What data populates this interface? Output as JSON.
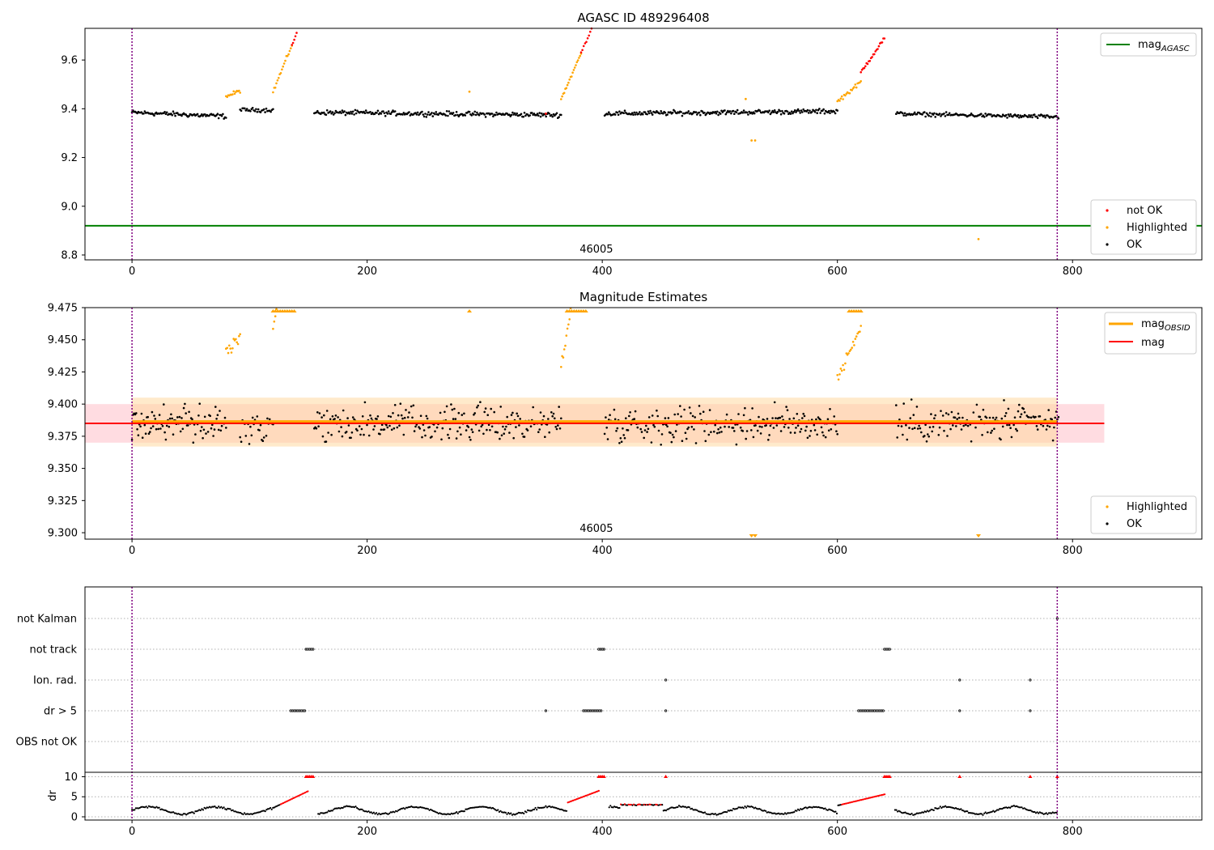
{
  "chart_data": [
    {
      "type": "scatter",
      "title": "AGASC ID 489296408",
      "xlim": [
        -40,
        910
      ],
      "ylim": [
        8.78,
        9.73
      ],
      "xticks": [
        0,
        200,
        400,
        600,
        800
      ],
      "yticks": [
        8.8,
        9.0,
        9.2,
        9.4,
        9.6
      ],
      "ytick_labels": [
        "8.8",
        "9.0",
        "9.2",
        "9.4",
        "9.6"
      ],
      "annotation": "46005",
      "annotation_x": 395,
      "vlines": [
        0,
        787
      ],
      "hline": {
        "name": "mag_AGASC",
        "label_main": "mag",
        "label_sub": "AGASC",
        "y": 8.92,
        "color": "#008000"
      },
      "legend_line": {
        "label_main": "mag",
        "label_sub": "AGASC",
        "color": "#008000"
      },
      "legend_markers": [
        {
          "label": "not OK",
          "color": "#ff0000"
        },
        {
          "label": "Highlighted",
          "color": "#ffa500"
        },
        {
          "label": "OK",
          "color": "#000000"
        }
      ],
      "segments": [
        {
          "x0": 0,
          "x1": 80,
          "base": 9.385,
          "slope": -0.0002,
          "noise": 0.012,
          "status": "ok",
          "n": 90
        },
        {
          "x0": 80,
          "x1": 92,
          "base": 9.45,
          "slope": 0.002,
          "noise": 0.01,
          "status": "highlighted",
          "n": 14
        },
        {
          "x0": 92,
          "x1": 120,
          "base": 9.395,
          "slope": 0.0,
          "noise": 0.01,
          "status": "ok",
          "n": 30
        },
        {
          "x0": 120,
          "x1": 136,
          "base": 9.47,
          "slope": 0.012,
          "noise": 0.01,
          "status": "highlighted",
          "n": 18
        },
        {
          "x0": 136,
          "x1": 140,
          "base": 9.66,
          "slope": 0.012,
          "noise": 0.005,
          "status": "notok",
          "n": 5
        },
        {
          "x0": 155,
          "x1": 365,
          "base": 9.385,
          "slope": -5e-05,
          "noise": 0.012,
          "status": "ok",
          "n": 230
        },
        {
          "x0": 365,
          "x1": 382,
          "base": 9.44,
          "slope": 0.011,
          "noise": 0.01,
          "status": "highlighted",
          "n": 20
        },
        {
          "x0": 382,
          "x1": 392,
          "base": 9.63,
          "slope": 0.011,
          "noise": 0.005,
          "status": "notok",
          "n": 10
        },
        {
          "x0": 402,
          "x1": 600,
          "base": 9.38,
          "slope": 5e-05,
          "noise": 0.012,
          "status": "ok",
          "n": 220
        },
        {
          "x0": 600,
          "x1": 620,
          "base": 9.43,
          "slope": 0.004,
          "noise": 0.01,
          "status": "highlighted",
          "n": 22
        },
        {
          "x0": 620,
          "x1": 640,
          "base": 9.55,
          "slope": 0.007,
          "noise": 0.01,
          "status": "notok",
          "n": 22
        },
        {
          "x0": 650,
          "x1": 788,
          "base": 9.38,
          "slope": -0.0001,
          "noise": 0.01,
          "status": "ok",
          "n": 150
        }
      ],
      "extra_points": [
        {
          "x": 287,
          "y": 9.47,
          "status": "highlighted"
        },
        {
          "x": 522,
          "y": 9.44,
          "status": "highlighted"
        },
        {
          "x": 527,
          "y": 9.27,
          "status": "highlighted"
        },
        {
          "x": 530,
          "y": 9.27,
          "status": "highlighted"
        },
        {
          "x": 720,
          "y": 8.865,
          "status": "highlighted"
        },
        {
          "x": 352,
          "y": 9.38,
          "status": "notok"
        }
      ]
    },
    {
      "type": "scatter",
      "title": "Magnitude Estimates",
      "xlim": [
        -40,
        910
      ],
      "ylim": [
        9.295,
        9.475
      ],
      "xticks": [
        0,
        200,
        400,
        600,
        800
      ],
      "yticks": [
        9.3,
        9.325,
        9.35,
        9.375,
        9.4,
        9.425,
        9.45,
        9.475
      ],
      "ytick_labels": [
        "9.300",
        "9.325",
        "9.350",
        "9.375",
        "9.400",
        "9.425",
        "9.450",
        "9.475"
      ],
      "annotation": "46005",
      "annotation_x": 395,
      "vlines": [
        0,
        787
      ],
      "mag_obsid": {
        "y": 9.3865,
        "x0": 0,
        "x1": 787,
        "band": [
          9.367,
          9.405
        ],
        "color": "#ffa500"
      },
      "mag": {
        "y": 9.385,
        "x0": -40,
        "x1": 827,
        "band": [
          9.37,
          9.4
        ],
        "color": "#ff0000"
      },
      "legend_lines": [
        {
          "label_main": "mag",
          "label_sub": "OBSID",
          "color": "#ffa500"
        },
        {
          "label_main": "mag",
          "label_sub": "",
          "color": "#ff0000"
        }
      ],
      "legend_markers": [
        {
          "label": "Highlighted",
          "color": "#ffa500"
        },
        {
          "label": "OK",
          "color": "#000000"
        }
      ],
      "upper_clipped_x": [
        120,
        122,
        124,
        126,
        128,
        130,
        132,
        134,
        136,
        138,
        287,
        370,
        372,
        374,
        376,
        378,
        380,
        382,
        384,
        386,
        610,
        612,
        614,
        616,
        618,
        620
      ],
      "lower_clipped_x": [
        527,
        530,
        720
      ]
    },
    {
      "type": "scatter",
      "title": "",
      "xlim": [
        -40,
        910
      ],
      "xticks": [
        0,
        200,
        400,
        600,
        800
      ],
      "vlines": [
        0,
        787
      ],
      "flag_rows": [
        "not Kalman",
        "not track",
        "Ion. rad.",
        "dr > 5",
        "OBS not OK"
      ],
      "flags": {
        "not Kalman": [
          [
            787,
            787
          ]
        ],
        "not track": [
          [
            148,
            154
          ],
          [
            397,
            402
          ],
          [
            640,
            645
          ]
        ],
        "Ion. rad.": [
          [
            454,
            454
          ],
          [
            704,
            704
          ],
          [
            764,
            764
          ]
        ],
        "dr > 5": [
          [
            135,
            147
          ],
          [
            352,
            352
          ],
          [
            384,
            399
          ],
          [
            618,
            640
          ],
          [
            454,
            454
          ],
          [
            704,
            704
          ],
          [
            764,
            764
          ]
        ],
        "OBS not OK": []
      },
      "dr": {
        "ylabel": "dr",
        "ylim": [
          0,
          10.5
        ],
        "yticks": [
          0,
          5,
          10
        ],
        "ytick_labels": [
          "0",
          "5",
          "10"
        ],
        "threshold": 5
      }
    }
  ]
}
